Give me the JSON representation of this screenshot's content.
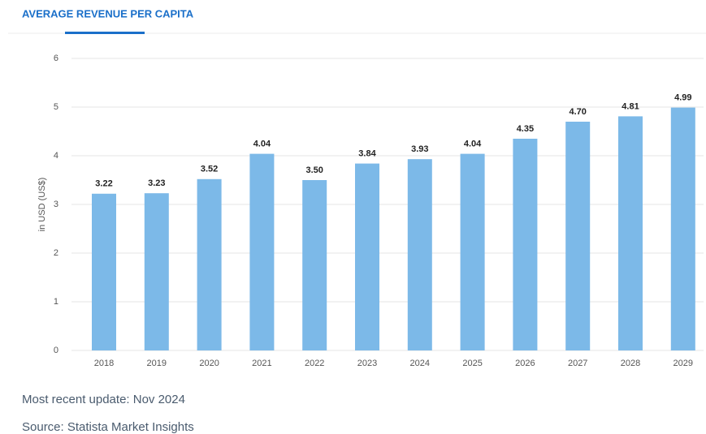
{
  "tab_title": "AVERAGE REVENUE PER CAPITA",
  "chart_data": {
    "type": "bar",
    "y_label": "in USD (US$)",
    "categories": [
      "2018",
      "2019",
      "2020",
      "2021",
      "2022",
      "2023",
      "2024",
      "2025",
      "2026",
      "2027",
      "2028",
      "2029"
    ],
    "values": [
      3.22,
      3.23,
      3.52,
      4.04,
      3.5,
      3.84,
      3.93,
      4.04,
      4.35,
      4.7,
      4.81,
      4.99
    ],
    "value_labels": [
      "3.22",
      "3.23",
      "3.52",
      "4.04",
      "3.50",
      "3.84",
      "3.93",
      "4.04",
      "4.35",
      "4.70",
      "4.81",
      "4.99"
    ],
    "color": "#7cb9e8",
    "ylim": [
      0,
      6
    ],
    "yticks": [
      0,
      1,
      2,
      3,
      4,
      5,
      6
    ],
    "grid": true
  },
  "footer": {
    "update": "Most recent update: Nov 2024",
    "source": "Source: Statista Market Insights"
  }
}
